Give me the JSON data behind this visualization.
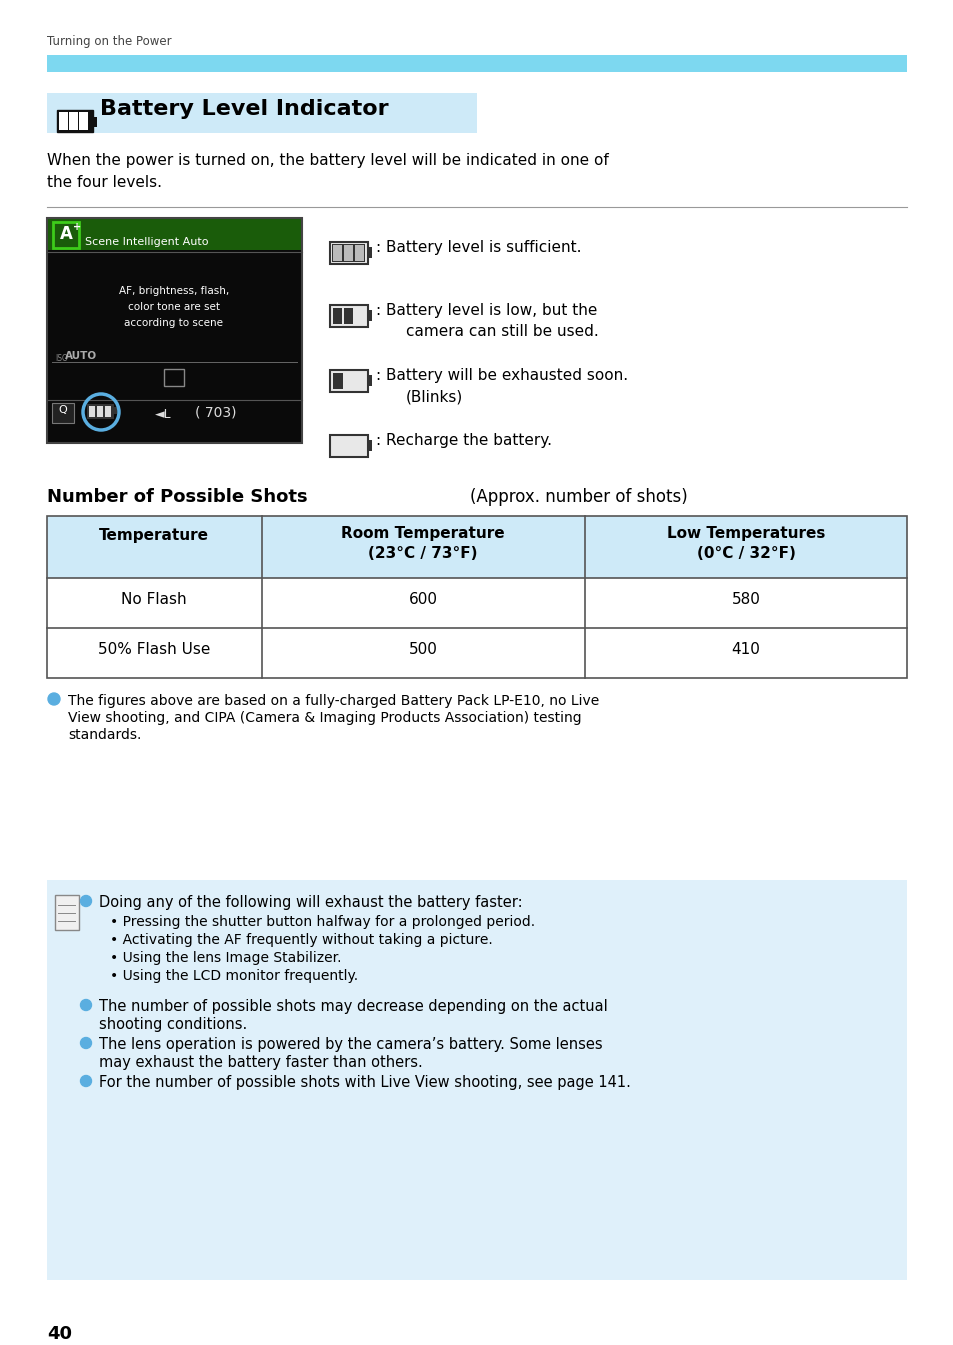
{
  "page_number": "40",
  "header_text": "Turning on the Power",
  "cyan_bar_color": "#7dd8f0",
  "title": "Battery Level Indicator",
  "title_bg_color": "#ceeaf8",
  "intro_text": "When the power is turned on, the battery level will be indicated in one of\nthe four levels.",
  "battery_levels": [
    ": Battery level is sufficient.",
    ": Battery level is low, but the\n    camera can still be used.",
    ": Battery will be exhausted soon.\n    (Blinks)",
    ": Recharge the battery."
  ],
  "table_title_left": "Number of Possible Shots",
  "table_title_right": "(Approx. number of shots)",
  "table_header_bg": "#ceeaf8",
  "table_col1": "Temperature",
  "table_col2_line1": "Room Temperature",
  "table_col2_line2": "(23°C / 73°F)",
  "table_col3_line1": "Low Temperatures",
  "table_col3_line2": "(0°C / 32°F)",
  "table_row1": [
    "No Flash",
    "600",
    "580"
  ],
  "table_row2": [
    "50% Flash Use",
    "500",
    "410"
  ],
  "note_text_line1": "The figures above are based on a fully-charged Battery Pack LP-E10, no Live",
  "note_text_line2": "View shooting, and CIPA (Camera & Imaging Products Association) testing",
  "note_text_line3": "standards.",
  "info_box_bg": "#dff0fa",
  "info_bullet1_line1": "Doing any of the following will exhaust the battery faster:",
  "info_bullet1_subs": [
    "• Pressing the shutter button halfway for a prolonged period.",
    "• Activating the AF frequently without taking a picture.",
    "• Using the lens Image Stabilizer.",
    "• Using the LCD monitor frequently."
  ],
  "info_bullet2_line1": "The number of possible shots may decrease depending on the actual",
  "info_bullet2_line2": "shooting conditions.",
  "info_bullet3_line1": "The lens operation is powered by the camera’s battery. Some lenses",
  "info_bullet3_line2": "may exhaust the battery faster than others.",
  "info_bullet4_line1": "For the number of possible shots with Live View shooting, see page 141.",
  "bullet_color": "#5aaee0",
  "text_color": "#000000",
  "bg_color": "#ffffff",
  "cam_green_top": "#1a5c0a",
  "cam_black": "#0a0a0a",
  "cam_a_green": "#3dcc1a"
}
